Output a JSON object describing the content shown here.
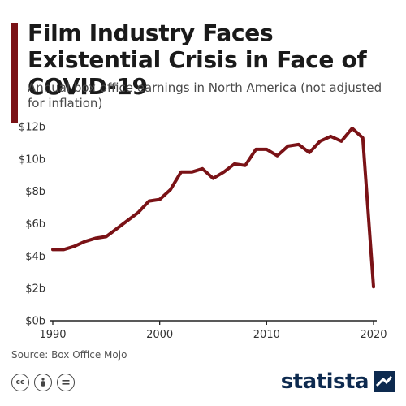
{
  "header": {
    "title": "Film Industry Faces Existential Crisis in Face of COVID-19",
    "subtitle": "Annual box office earnings in North America (not adjusted for inflation)"
  },
  "footer": {
    "source": "Source: Box Office Mojo",
    "cc_icons": [
      "cc-icon",
      "by-icon",
      "nd-icon"
    ],
    "brand": "statista"
  },
  "colors": {
    "accent": "#7a1216",
    "line": "#7a1216",
    "brand": "#0d2a4f"
  },
  "chart_data": {
    "type": "line",
    "title": "Film Industry Faces Existential Crisis in Face of COVID-19",
    "subtitle": "Annual box office earnings in North America (not adjusted for inflation)",
    "xlabel": "",
    "ylabel": "",
    "xlim": [
      1990,
      2020
    ],
    "ylim": [
      0,
      12
    ],
    "x_ticks": [
      1990,
      2000,
      2010,
      2020
    ],
    "x_tick_labels": [
      "1990",
      "2000",
      "2010",
      "2020"
    ],
    "y_ticks": [
      0,
      2,
      4,
      6,
      8,
      10,
      12
    ],
    "y_tick_labels": [
      "$0b",
      "$2b",
      "$4b",
      "$6b",
      "$8b",
      "$10b",
      "$12b"
    ],
    "grid": false,
    "series": [
      {
        "x": [
          1990,
          1991,
          1992,
          1993,
          1994,
          1995,
          1996,
          1997,
          1998,
          1999,
          2000,
          2001,
          2002,
          2003,
          2004,
          2005,
          2006,
          2007,
          2008,
          2009,
          2010,
          2011,
          2012,
          2013,
          2014,
          2015,
          2016,
          2017,
          2018,
          2019,
          2020
        ],
        "values": [
          4.4,
          4.4,
          4.6,
          4.9,
          5.1,
          5.2,
          5.7,
          6.2,
          6.7,
          7.4,
          7.5,
          8.1,
          9.2,
          9.2,
          9.4,
          8.8,
          9.2,
          9.7,
          9.6,
          10.6,
          10.6,
          10.2,
          10.8,
          10.9,
          10.4,
          11.1,
          11.4,
          11.1,
          11.9,
          11.3,
          2.1
        ]
      }
    ]
  }
}
